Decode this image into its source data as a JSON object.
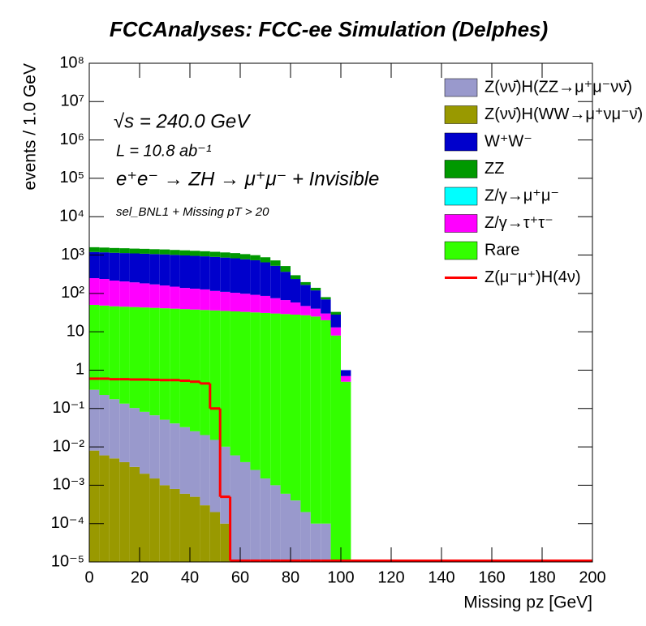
{
  "chart_data": {
    "type": "histogram",
    "title": "FCCAnalyses: FCC-ee Simulation (Delphes)",
    "x_label": "Missing pz [GeV]",
    "y_label": "events / 1.0 GeV",
    "annotations": [
      "√s = 240.0 GeV",
      "L = 10.8 ab⁻¹",
      "e⁺e⁻ → ZH → μ⁺μ⁻ + Invisible",
      "sel_BNL1 + Missing pT > 20"
    ],
    "log_y": true,
    "stacked": true,
    "bins": [
      0,
      4,
      8,
      12,
      16,
      20,
      24,
      28,
      32,
      36,
      40,
      44,
      48,
      52,
      56,
      60,
      64,
      68,
      72,
      76,
      80,
      84,
      88,
      92,
      96,
      100,
      104,
      200
    ],
    "xlim": [
      0,
      200
    ],
    "xticks": [
      0,
      20,
      40,
      60,
      80,
      100,
      120,
      140,
      160,
      180,
      200
    ],
    "ylim": [
      1e-05,
      100000000
    ],
    "yticks": [
      {
        "value": 1e-05,
        "label": "10⁻⁵"
      },
      {
        "value": 0.0001,
        "label": "10⁻⁴"
      },
      {
        "value": 0.001,
        "label": "10⁻³"
      },
      {
        "value": 0.01,
        "label": "10⁻²"
      },
      {
        "value": 0.1,
        "label": "10⁻¹"
      },
      1,
      10,
      {
        "value": 100,
        "label": "10²"
      },
      {
        "value": 1000,
        "label": "10³"
      },
      {
        "value": 10000,
        "label": "10⁴"
      },
      {
        "value": 100000,
        "label": "10⁵"
      },
      {
        "value": 1000000,
        "label": "10⁶"
      },
      {
        "value": 10000000,
        "label": "10⁷"
      },
      {
        "value": 100000000,
        "label": "10⁸"
      }
    ],
    "series": [
      {
        "name": "Z(νν̄)H(ZZ→μ⁺μ⁻νν̄)",
        "color": "#9999cc",
        "values": [
          0.3,
          0.22,
          0.17,
          0.13,
          0.1,
          0.08,
          0.065,
          0.05,
          0.04,
          0.032,
          0.025,
          0.02,
          0.015,
          0.01,
          0.006,
          0.004,
          0.0025,
          0.0015,
          0.001,
          0.0006,
          0.0004,
          0.0002,
          0.0001,
          0.0001,
          0,
          0,
          0
        ]
      },
      {
        "name": "Z(νν̄)H(WW→μ⁺νμ⁻ν̄)",
        "color": "#999900",
        "values": [
          0.008,
          0.006,
          0.005,
          0.004,
          0.003,
          0.002,
          0.0015,
          0.001,
          0.0008,
          0.0006,
          0.0005,
          0.0003,
          0.0002,
          0.0001,
          0,
          0,
          0,
          0,
          0,
          0,
          0,
          0,
          0,
          0,
          0,
          0,
          0
        ]
      },
      {
        "name": "W⁺W⁻",
        "color": "#0000cc",
        "values": [
          950,
          940,
          930,
          920,
          910,
          900,
          890,
          880,
          860,
          840,
          820,
          800,
          780,
          750,
          720,
          680,
          640,
          560,
          450,
          300,
          180,
          120,
          80,
          40,
          15,
          0.3,
          0
        ]
      },
      {
        "name": "ZZ",
        "color": "#009900",
        "values": [
          400,
          390,
          380,
          380,
          370,
          370,
          360,
          360,
          350,
          350,
          340,
          330,
          320,
          310,
          300,
          280,
          260,
          230,
          200,
          150,
          60,
          30,
          20,
          10,
          5,
          0,
          0
        ]
      },
      {
        "name": "Z/γ→μ⁺μ⁻",
        "color": "#00ffff",
        "values": [
          0,
          0,
          0,
          0,
          0,
          0,
          0,
          0,
          0,
          0,
          0,
          0,
          0,
          0,
          0,
          0,
          0,
          0,
          0,
          0,
          0,
          0,
          0,
          0,
          0,
          0,
          0
        ]
      },
      {
        "name": "Z/γ→τ⁺τ⁻",
        "color": "#ff00ff",
        "values": [
          200,
          190,
          170,
          160,
          150,
          140,
          130,
          120,
          110,
          100,
          95,
          90,
          80,
          75,
          70,
          65,
          60,
          55,
          45,
          38,
          30,
          20,
          15,
          10,
          5,
          0.2,
          0
        ]
      },
      {
        "name": "Rare",
        "color": "#33ff00",
        "values": [
          50,
          48,
          46,
          45,
          44,
          43,
          42,
          41,
          40,
          39,
          38,
          37,
          36,
          35,
          34,
          33,
          32,
          31,
          30,
          29,
          28,
          27,
          25,
          20,
          8,
          0.5,
          0
        ]
      },
      {
        "name": "Z(μ⁻μ⁺)H(4ν)",
        "color": "#ff0000",
        "style": "line",
        "values": [
          0.6,
          0.6,
          0.58,
          0.58,
          0.57,
          0.57,
          0.56,
          0.55,
          0.55,
          0.53,
          0.5,
          0.45,
          0.1,
          0.0005,
          0,
          0,
          0,
          0,
          0,
          0,
          0,
          0,
          0,
          0,
          0,
          0,
          0
        ]
      }
    ]
  }
}
